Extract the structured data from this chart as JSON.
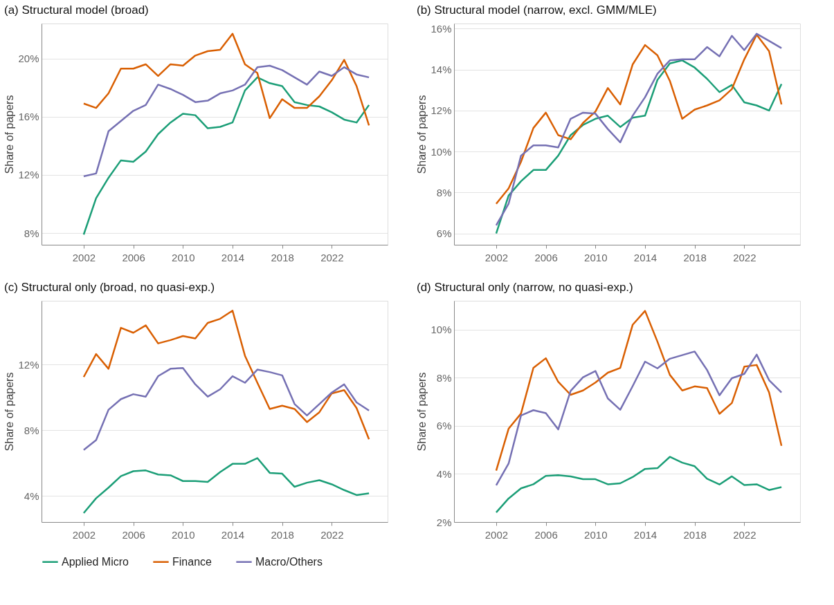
{
  "chart_data": [
    {
      "type": "line",
      "title": "(a) Structural model (broad)",
      "ylabel": "Share of papers",
      "legend": "bottom",
      "grid": "y",
      "line_style": "solid",
      "x": [
        2002,
        2003,
        2004,
        2005,
        2006,
        2007,
        2008,
        2009,
        2010,
        2011,
        2012,
        2013,
        2014,
        2015,
        2016,
        2017,
        2018,
        2019,
        2020,
        2021,
        2022,
        2023,
        2024,
        2025
      ],
      "xlim": [
        1998.6,
        2026.5
      ],
      "xticks": [
        2002,
        2006,
        2010,
        2014,
        2018,
        2022
      ],
      "ylim": [
        7.2,
        22.4
      ],
      "yticks": [
        {
          "value": 8,
          "label": "8%"
        },
        {
          "value": 12,
          "label": "12%"
        },
        {
          "value": 16,
          "label": "16%"
        },
        {
          "value": 20,
          "label": "20%"
        }
      ],
      "series": [
        {
          "name": "Applied Micro",
          "color": "#1b9e77",
          "values": [
            7.9,
            10.4,
            11.8,
            13.0,
            12.9,
            13.6,
            14.8,
            15.6,
            16.2,
            16.1,
            15.2,
            15.3,
            15.6,
            17.8,
            18.7,
            18.3,
            18.1,
            17.0,
            16.8,
            16.7,
            16.3,
            15.8,
            15.6,
            16.8
          ]
        },
        {
          "name": "Finance",
          "color": "#d95f02",
          "values": [
            16.9,
            16.6,
            17.6,
            19.3,
            19.3,
            19.6,
            18.8,
            19.6,
            19.5,
            20.2,
            20.5,
            20.6,
            21.7,
            19.6,
            19.0,
            15.9,
            17.2,
            16.6,
            16.6,
            17.4,
            18.5,
            19.9,
            18.1,
            15.4
          ]
        },
        {
          "name": "Macro/Others",
          "color": "#7570b3",
          "values": [
            11.9,
            12.1,
            15.0,
            15.7,
            16.4,
            16.8,
            18.2,
            17.9,
            17.5,
            17.0,
            17.1,
            17.6,
            17.8,
            18.2,
            19.4,
            19.5,
            19.2,
            18.7,
            18.2,
            19.1,
            18.8,
            19.4,
            18.9,
            18.7
          ]
        }
      ]
    },
    {
      "type": "line",
      "title": "(b) Structural model (narrow, excl. GMM/MLE)",
      "ylabel": "Share of papers",
      "legend": "bottom",
      "grid": "y",
      "line_style": "solid",
      "x": [
        2002,
        2003,
        2004,
        2005,
        2006,
        2007,
        2008,
        2009,
        2010,
        2011,
        2012,
        2013,
        2014,
        2015,
        2016,
        2017,
        2018,
        2019,
        2020,
        2021,
        2022,
        2023,
        2024,
        2025
      ],
      "xlim": [
        1998.6,
        2026.5
      ],
      "xticks": [
        2002,
        2006,
        2010,
        2014,
        2018,
        2022
      ],
      "ylim": [
        5.45,
        16.25
      ],
      "yticks": [
        {
          "value": 6,
          "label": "6%"
        },
        {
          "value": 8,
          "label": "8%"
        },
        {
          "value": 10,
          "label": "10%"
        },
        {
          "value": 12,
          "label": "12%"
        },
        {
          "value": 14,
          "label": "14%"
        },
        {
          "value": 16,
          "label": "16%"
        }
      ],
      "series": [
        {
          "name": "Applied Micro",
          "color": "#1b9e77",
          "values": [
            6.0,
            7.85,
            8.55,
            9.1,
            9.1,
            9.8,
            10.8,
            11.3,
            11.6,
            11.75,
            11.2,
            11.65,
            11.75,
            13.5,
            14.3,
            14.45,
            14.1,
            13.55,
            12.9,
            13.25,
            12.4,
            12.25,
            12.0,
            13.3
          ]
        },
        {
          "name": "Finance",
          "color": "#d95f02",
          "values": [
            7.45,
            8.2,
            9.5,
            11.15,
            11.9,
            10.8,
            10.6,
            11.4,
            11.95,
            13.1,
            12.3,
            14.25,
            15.2,
            14.7,
            13.45,
            11.6,
            12.05,
            12.25,
            12.5,
            13.05,
            14.5,
            15.7,
            14.9,
            12.3
          ]
        },
        {
          "name": "Macro/Others",
          "color": "#7570b3",
          "values": [
            6.4,
            7.45,
            9.8,
            10.3,
            10.3,
            10.2,
            11.6,
            11.9,
            11.85,
            11.1,
            10.45,
            11.75,
            12.65,
            13.8,
            14.45,
            14.5,
            14.5,
            15.1,
            14.65,
            15.65,
            14.95,
            15.75,
            15.4,
            15.05
          ]
        }
      ]
    },
    {
      "type": "line",
      "title": "(c) Structural only (broad, no quasi-exp.)",
      "ylabel": "Share of papers",
      "legend": "bottom",
      "grid": "y",
      "line_style": "solid",
      "x": [
        2002,
        2003,
        2004,
        2005,
        2006,
        2007,
        2008,
        2009,
        2010,
        2011,
        2012,
        2013,
        2014,
        2015,
        2016,
        2017,
        2018,
        2019,
        2020,
        2021,
        2022,
        2023,
        2024,
        2025
      ],
      "xlim": [
        1998.6,
        2026.5
      ],
      "xticks": [
        2002,
        2006,
        2010,
        2014,
        2018,
        2022
      ],
      "ylim": [
        2.4,
        15.9
      ],
      "yticks": [
        {
          "value": 4,
          "label": "4%"
        },
        {
          "value": 8,
          "label": "8%"
        },
        {
          "value": 12,
          "label": "12%"
        }
      ],
      "series": [
        {
          "name": "Applied Micro",
          "color": "#1b9e77",
          "values": [
            2.95,
            3.85,
            4.5,
            5.2,
            5.5,
            5.55,
            5.3,
            5.25,
            4.9,
            4.9,
            4.85,
            5.45,
            5.95,
            5.95,
            6.3,
            5.4,
            5.35,
            4.55,
            4.8,
            4.95,
            4.7,
            4.35,
            4.05,
            4.15
          ]
        },
        {
          "name": "Finance",
          "color": "#d95f02",
          "values": [
            11.25,
            12.65,
            11.75,
            14.25,
            13.95,
            14.4,
            13.3,
            13.5,
            13.75,
            13.6,
            14.55,
            14.8,
            15.3,
            12.55,
            10.9,
            9.3,
            9.5,
            9.3,
            8.5,
            9.1,
            10.25,
            10.45,
            9.35,
            7.45
          ]
        },
        {
          "name": "Macro/Others",
          "color": "#7570b3",
          "values": [
            6.8,
            7.4,
            9.25,
            9.9,
            10.2,
            10.05,
            11.3,
            11.75,
            11.8,
            10.8,
            10.05,
            10.5,
            11.3,
            10.9,
            11.7,
            11.55,
            11.35,
            9.6,
            8.9,
            9.6,
            10.3,
            10.8,
            9.7,
            9.2
          ]
        }
      ]
    },
    {
      "type": "line",
      "title": "(d) Structural only (narrow, no quasi-exp.)",
      "ylabel": "Share of papers",
      "legend": "bottom",
      "grid": "y",
      "line_style": "solid",
      "x": [
        2002,
        2003,
        2004,
        2005,
        2006,
        2007,
        2008,
        2009,
        2010,
        2011,
        2012,
        2013,
        2014,
        2015,
        2016,
        2017,
        2018,
        2019,
        2020,
        2021,
        2022,
        2023,
        2024,
        2025
      ],
      "xlim": [
        1998.6,
        2026.5
      ],
      "xticks": [
        2002,
        2006,
        2010,
        2014,
        2018,
        2022
      ],
      "ylim": [
        2,
        11.2
      ],
      "yticks": [
        {
          "value": 2,
          "label": "2%"
        },
        {
          "value": 4,
          "label": "4%"
        },
        {
          "value": 6,
          "label": "6%"
        },
        {
          "value": 8,
          "label": "8%"
        },
        {
          "value": 10,
          "label": "10%"
        }
      ],
      "series": [
        {
          "name": "Applied Micro",
          "color": "#1b9e77",
          "values": [
            2.4,
            2.98,
            3.4,
            3.57,
            3.92,
            3.95,
            3.9,
            3.78,
            3.78,
            3.57,
            3.61,
            3.87,
            4.21,
            4.24,
            4.71,
            4.47,
            4.32,
            3.8,
            3.56,
            3.9,
            3.54,
            3.57,
            3.33,
            3.45
          ]
        },
        {
          "name": "Finance",
          "color": "#d95f02",
          "values": [
            4.14,
            5.88,
            6.51,
            8.41,
            8.81,
            7.83,
            7.29,
            7.47,
            7.8,
            8.21,
            8.41,
            10.2,
            10.78,
            9.5,
            8.12,
            7.47,
            7.64,
            7.57,
            6.5,
            6.95,
            8.46,
            8.53,
            7.39,
            5.17
          ]
        },
        {
          "name": "Macro/Others",
          "color": "#7570b3",
          "values": [
            3.53,
            4.43,
            6.43,
            6.65,
            6.53,
            5.85,
            7.45,
            8.02,
            8.28,
            7.14,
            6.67,
            7.65,
            8.67,
            8.39,
            8.79,
            8.94,
            9.09,
            8.32,
            7.27,
            7.98,
            8.16,
            8.96,
            7.9,
            7.39
          ]
        }
      ]
    }
  ]
}
